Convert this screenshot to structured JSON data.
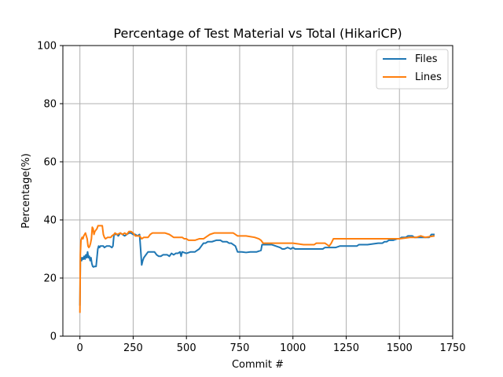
{
  "chart_data": {
    "type": "line",
    "title": "Percentage of Test Material vs Total (HikariCP)",
    "xlabel": "Commit #",
    "ylabel": "Percentage(%)",
    "xlim": [
      -80,
      1750
    ],
    "ylim": [
      0,
      100
    ],
    "xticks": [
      0,
      250,
      500,
      750,
      1000,
      1250,
      1500,
      1750
    ],
    "yticks": [
      0,
      20,
      40,
      60,
      80,
      100
    ],
    "grid": true,
    "legend_position": "top-right",
    "series": [
      {
        "name": "Files",
        "color": "#1f77b4",
        "points": [
          [
            0,
            10.5
          ],
          [
            2,
            26
          ],
          [
            5,
            27
          ],
          [
            8,
            26
          ],
          [
            12,
            27
          ],
          [
            16,
            26.5
          ],
          [
            20,
            27.5
          ],
          [
            24,
            26.5
          ],
          [
            28,
            28
          ],
          [
            32,
            27
          ],
          [
            36,
            29
          ],
          [
            40,
            27
          ],
          [
            44,
            27.5
          ],
          [
            48,
            26
          ],
          [
            52,
            27
          ],
          [
            56,
            25
          ],
          [
            60,
            24
          ],
          [
            64,
            23.8
          ],
          [
            68,
            24
          ],
          [
            72,
            24
          ],
          [
            76,
            24
          ],
          [
            80,
            27
          ],
          [
            84,
            30
          ],
          [
            88,
            31
          ],
          [
            92,
            30.5
          ],
          [
            96,
            31
          ],
          [
            100,
            31
          ],
          [
            110,
            31
          ],
          [
            115,
            30.5
          ],
          [
            125,
            31
          ],
          [
            140,
            31
          ],
          [
            150,
            30.5
          ],
          [
            155,
            31
          ],
          [
            160,
            35
          ],
          [
            175,
            35
          ],
          [
            180,
            34.5
          ],
          [
            190,
            35.5
          ],
          [
            200,
            35
          ],
          [
            210,
            34.5
          ],
          [
            220,
            35
          ],
          [
            230,
            35.5
          ],
          [
            240,
            35.5
          ],
          [
            250,
            35
          ],
          [
            260,
            35
          ],
          [
            270,
            34.5
          ],
          [
            280,
            35
          ],
          [
            285,
            30
          ],
          [
            290,
            24.5
          ],
          [
            295,
            26
          ],
          [
            300,
            27
          ],
          [
            310,
            28
          ],
          [
            320,
            29
          ],
          [
            330,
            29
          ],
          [
            340,
            29
          ],
          [
            350,
            29
          ],
          [
            360,
            28
          ],
          [
            370,
            27.5
          ],
          [
            380,
            27.5
          ],
          [
            390,
            28
          ],
          [
            400,
            28
          ],
          [
            410,
            28
          ],
          [
            420,
            27.5
          ],
          [
            430,
            28.5
          ],
          [
            440,
            28
          ],
          [
            450,
            28.5
          ],
          [
            460,
            28.5
          ],
          [
            470,
            29
          ],
          [
            475,
            27.5
          ],
          [
            480,
            29
          ],
          [
            500,
            28.5
          ],
          [
            520,
            29
          ],
          [
            540,
            29
          ],
          [
            550,
            29.5
          ],
          [
            560,
            30
          ],
          [
            570,
            31
          ],
          [
            580,
            32
          ],
          [
            590,
            32
          ],
          [
            600,
            32.5
          ],
          [
            610,
            32.5
          ],
          [
            620,
            32.5
          ],
          [
            640,
            33
          ],
          [
            660,
            33
          ],
          [
            670,
            32.5
          ],
          [
            690,
            32.5
          ],
          [
            700,
            32
          ],
          [
            710,
            32
          ],
          [
            720,
            31.5
          ],
          [
            730,
            31
          ],
          [
            740,
            29
          ],
          [
            760,
            29
          ],
          [
            780,
            28.8
          ],
          [
            800,
            29
          ],
          [
            830,
            29
          ],
          [
            850,
            29.5
          ],
          [
            855,
            31.5
          ],
          [
            870,
            31.5
          ],
          [
            900,
            31.5
          ],
          [
            920,
            31
          ],
          [
            940,
            30.5
          ],
          [
            950,
            30
          ],
          [
            960,
            30
          ],
          [
            975,
            30.5
          ],
          [
            990,
            30
          ],
          [
            1000,
            30.5
          ],
          [
            1010,
            30
          ],
          [
            1050,
            30
          ],
          [
            1100,
            30
          ],
          [
            1140,
            30
          ],
          [
            1150,
            30.5
          ],
          [
            1180,
            30.5
          ],
          [
            1200,
            30.5
          ],
          [
            1220,
            31
          ],
          [
            1260,
            31
          ],
          [
            1300,
            31
          ],
          [
            1310,
            31.5
          ],
          [
            1350,
            31.5
          ],
          [
            1400,
            32
          ],
          [
            1420,
            32
          ],
          [
            1430,
            32.5
          ],
          [
            1440,
            32.5
          ],
          [
            1450,
            33
          ],
          [
            1470,
            33
          ],
          [
            1490,
            33.5
          ],
          [
            1500,
            33.5
          ],
          [
            1510,
            34
          ],
          [
            1530,
            34
          ],
          [
            1540,
            34.5
          ],
          [
            1560,
            34.5
          ],
          [
            1570,
            34
          ],
          [
            1590,
            34
          ],
          [
            1600,
            34
          ],
          [
            1620,
            34
          ],
          [
            1640,
            34
          ],
          [
            1650,
            35
          ],
          [
            1665,
            35
          ]
        ]
      },
      {
        "name": "Lines",
        "color": "#ff7f0e",
        "points": [
          [
            0,
            8
          ],
          [
            2,
            28
          ],
          [
            5,
            33
          ],
          [
            10,
            34
          ],
          [
            14,
            33.5
          ],
          [
            18,
            34.5
          ],
          [
            22,
            35
          ],
          [
            26,
            35.5
          ],
          [
            30,
            34.5
          ],
          [
            34,
            33.5
          ],
          [
            38,
            31
          ],
          [
            42,
            30.5
          ],
          [
            46,
            31
          ],
          [
            50,
            32
          ],
          [
            54,
            33.5
          ],
          [
            58,
            37.5
          ],
          [
            62,
            37
          ],
          [
            66,
            35
          ],
          [
            70,
            36
          ],
          [
            75,
            36.5
          ],
          [
            80,
            37
          ],
          [
            85,
            38
          ],
          [
            95,
            38
          ],
          [
            105,
            38
          ],
          [
            110,
            35
          ],
          [
            115,
            34
          ],
          [
            120,
            33.5
          ],
          [
            130,
            34
          ],
          [
            145,
            34
          ],
          [
            150,
            34.5
          ],
          [
            160,
            35
          ],
          [
            165,
            35.5
          ],
          [
            175,
            35
          ],
          [
            190,
            35.5
          ],
          [
            200,
            35
          ],
          [
            210,
            35.5
          ],
          [
            220,
            35
          ],
          [
            230,
            36
          ],
          [
            240,
            36
          ],
          [
            250,
            35.5
          ],
          [
            260,
            34.5
          ],
          [
            270,
            34.5
          ],
          [
            280,
            34.5
          ],
          [
            290,
            33.5
          ],
          [
            300,
            34
          ],
          [
            320,
            34
          ],
          [
            330,
            35
          ],
          [
            340,
            35.5
          ],
          [
            360,
            35.5
          ],
          [
            380,
            35.5
          ],
          [
            400,
            35.5
          ],
          [
            420,
            35
          ],
          [
            440,
            34
          ],
          [
            460,
            34
          ],
          [
            480,
            34
          ],
          [
            490,
            33.5
          ],
          [
            500,
            33.5
          ],
          [
            510,
            33
          ],
          [
            540,
            33
          ],
          [
            560,
            33.5
          ],
          [
            580,
            33.5
          ],
          [
            590,
            34
          ],
          [
            600,
            34.5
          ],
          [
            610,
            35
          ],
          [
            630,
            35.5
          ],
          [
            680,
            35.5
          ],
          [
            720,
            35.5
          ],
          [
            740,
            34.5
          ],
          [
            780,
            34.5
          ],
          [
            820,
            34
          ],
          [
            840,
            33.5
          ],
          [
            850,
            33
          ],
          [
            860,
            32
          ],
          [
            900,
            32
          ],
          [
            950,
            32
          ],
          [
            1000,
            32
          ],
          [
            1050,
            31.5
          ],
          [
            1100,
            31.5
          ],
          [
            1110,
            32
          ],
          [
            1150,
            32
          ],
          [
            1160,
            31.5
          ],
          [
            1170,
            31
          ],
          [
            1180,
            32
          ],
          [
            1190,
            33.5
          ],
          [
            1200,
            33.5
          ],
          [
            1250,
            33.5
          ],
          [
            1300,
            33.5
          ],
          [
            1350,
            33.5
          ],
          [
            1400,
            33.5
          ],
          [
            1450,
            33.5
          ],
          [
            1500,
            33.5
          ],
          [
            1550,
            34
          ],
          [
            1580,
            34
          ],
          [
            1600,
            34.5
          ],
          [
            1620,
            34
          ],
          [
            1665,
            34.5
          ]
        ]
      }
    ]
  }
}
